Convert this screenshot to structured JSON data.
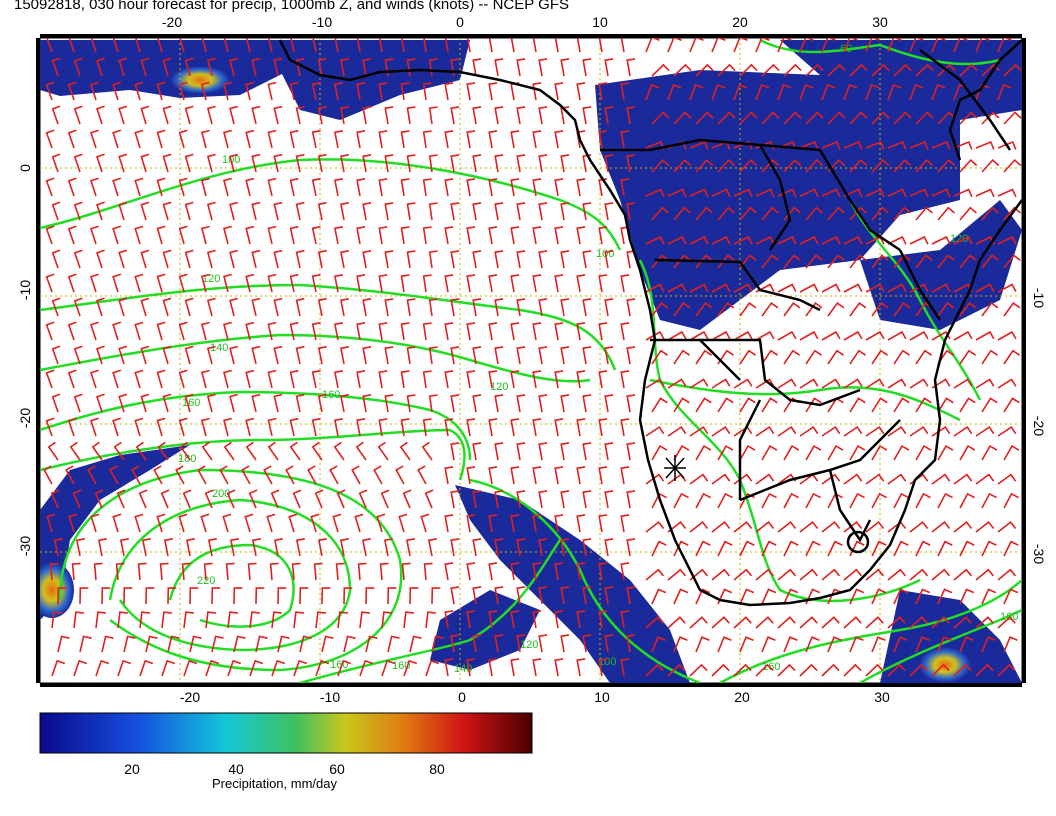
{
  "title": "15092818, 030 hour forecast for precip, 1000mb Z, and winds (knots) -- NCEP GFS",
  "map": {
    "lon_range": [
      -30,
      40
    ],
    "lat_range": [
      -40,
      10
    ],
    "lon_ticks": [
      "-20",
      "-10",
      "0",
      "10",
      "20",
      "30"
    ],
    "lon_tick_values": [
      -20,
      -10,
      0,
      10,
      20,
      30
    ],
    "lat_ticks": [
      "0",
      "-10",
      "-20",
      "-30"
    ],
    "lat_tick_values": [
      0,
      -10,
      -20,
      -30
    ],
    "graticule": "dotted orange every 10 degrees",
    "colors": {
      "land_outline": "#000000",
      "height_contours": "#22dd22",
      "wind_barbs": "#e02020",
      "precip_low": "#1a2a9a",
      "precip_high": "#8b0000"
    },
    "contour_labels": [
      "100",
      "100",
      "120",
      "140",
      "160",
      "160",
      "120",
      "180",
      "200",
      "220",
      "160",
      "160",
      "140",
      "120",
      "100",
      "160",
      "160",
      "60",
      "120"
    ]
  },
  "colorbar": {
    "ticks": [
      "20",
      "40",
      "60",
      "80"
    ],
    "tick_values": [
      20,
      40,
      60,
      80
    ],
    "min": 0,
    "max": 98,
    "label": "Precipitation, mm/day"
  }
}
